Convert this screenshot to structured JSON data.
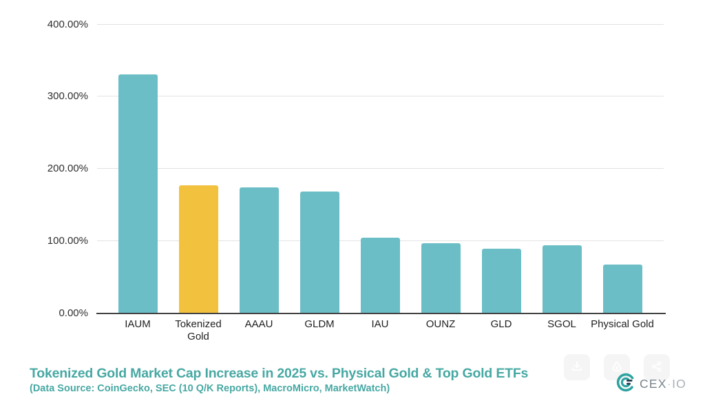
{
  "chart_data": {
    "type": "bar",
    "title": "Tokenized Gold Market Cap Increase in 2025 vs. Physical Gold & Top Gold ETFs",
    "subtitle": "(Data Source: CoinGecko, SEC (10 Q/K Reports), MacroMicro, MarketWatch)",
    "categories": [
      "IAUM",
      "Tokenized Gold",
      "AAAU",
      "GLDM",
      "IAU",
      "OUNZ",
      "GLD",
      "SGOL",
      "Physical Gold"
    ],
    "values": [
      330,
      176,
      174,
      168,
      104,
      96,
      89,
      93,
      67
    ],
    "value_unit": "%",
    "ylim": [
      0,
      400
    ],
    "y_ticks": [
      {
        "value": 400,
        "label": "400.00%"
      },
      {
        "value": 300,
        "label": "300.00%"
      },
      {
        "value": 200,
        "label": "200.00%"
      },
      {
        "value": 100,
        "label": "100.00%"
      },
      {
        "value": 0,
        "label": "0.00%"
      }
    ],
    "grid": true,
    "legend_position": "none",
    "highlight_index": 1,
    "highlight_category": "Tokenized Gold",
    "colors": {
      "bar": "#6bbec6",
      "highlight": "#f2c23e",
      "gridline": "#e2e2e2",
      "axis_line": "#424242",
      "tick_text": "#2e2e2e",
      "title_text": "#47a8a3"
    }
  },
  "branding": {
    "logo_cex": "CEX",
    "logo_separator": "·",
    "logo_io": "IO"
  },
  "overlay_buttons": [
    {
      "icon": "download-icon"
    },
    {
      "icon": "assistant-icon"
    },
    {
      "icon": "share-icon"
    }
  ]
}
